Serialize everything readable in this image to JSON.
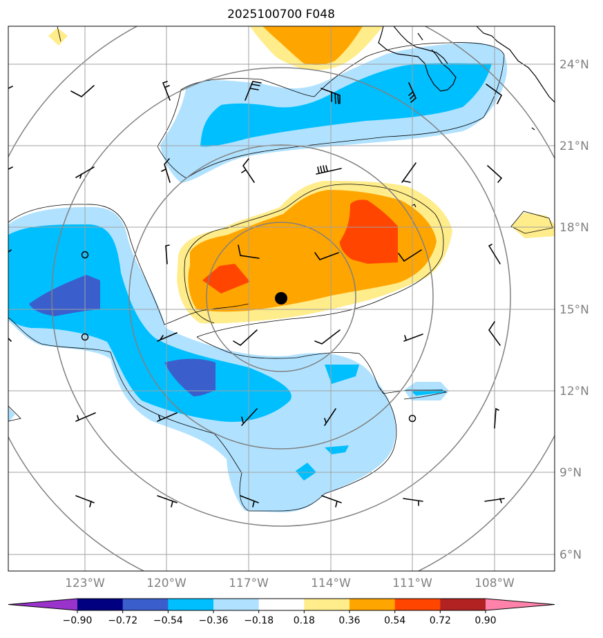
{
  "title": "2025100700 F048",
  "map": {
    "lon_labels": [
      "123°W",
      "120°W",
      "117°W",
      "114°W",
      "111°W",
      "108°W"
    ],
    "lat_labels": [
      "24°N",
      "21°N",
      "18°N",
      "15°N",
      "12°N",
      "9°N",
      "6°N"
    ],
    "gridline_color": "#a0a0a0",
    "range_ring_color": "#808080",
    "storm_center": {
      "lon": "115.7°W",
      "lat": "15.4°N"
    }
  },
  "colorbar": {
    "labels": [
      "−0.90",
      "−0.72",
      "−0.54",
      "−0.36",
      "−0.18",
      "0.18",
      "0.36",
      "0.54",
      "0.72",
      "0.90"
    ],
    "colors": [
      "#9933cc",
      "#000080",
      "#3a5fcd",
      "#00bfff",
      "#b0e2ff",
      "#ffffff",
      "#ffec8b",
      "#ffa500",
      "#ff4500",
      "#b22222",
      "#ff82ab"
    ]
  },
  "fill_colors": {
    "light_blue": "#b0e2ff",
    "blue": "#00bfff",
    "royal_blue": "#3a5fcd",
    "light_yellow": "#ffec8b",
    "orange": "#ffa500",
    "red_orange": "#ff4500"
  }
}
